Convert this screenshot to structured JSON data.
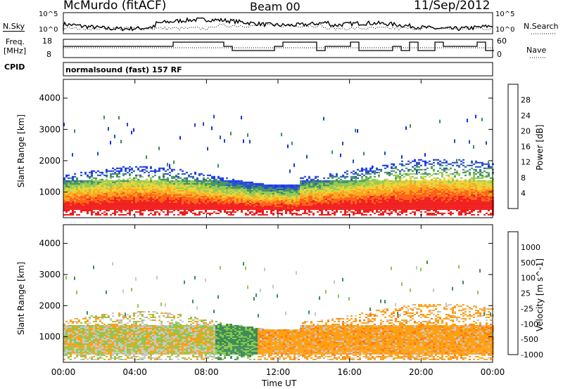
{
  "header": {
    "station": "McMurdo (fitACF)",
    "beam": "Beam 00",
    "date": "11/Sep/2012"
  },
  "side_labels": {
    "left_top": "N.Sky",
    "left_freq_1": "Freq.",
    "left_freq_2": "[MHz]",
    "left_cpid": "CPID",
    "right_top": "N.Search",
    "right_nave": "Nave"
  },
  "noise_panel": {
    "left_ticks": [
      "10^5",
      "10^0"
    ],
    "right_ticks": [
      "10^5",
      "10^0"
    ]
  },
  "freq_panel": {
    "left_ticks": [
      "18",
      "8"
    ],
    "right_ticks": [
      "60",
      "0"
    ]
  },
  "cpid_text": "normalsound (fast) 157 RF",
  "chart_data": [
    {
      "type": "heatmap",
      "title": "Power",
      "ylabel": "Slant Range [km]",
      "xlabel": "",
      "ylim": [
        180,
        4600
      ],
      "yticks": [
        "1000",
        "2000",
        "3000",
        "4000"
      ],
      "colorbar_label": "Power [dB]",
      "colorbar_ticks": [
        "28",
        "24",
        "20",
        "16",
        "12",
        "8",
        "4"
      ],
      "colors": [
        "#0a28ff",
        "#1e46c8",
        "#3c8c5a",
        "#8cc84b",
        "#e6d22d",
        "#ffa014",
        "#ff5a0a",
        "#f01414"
      ],
      "scatter_band_km": [
        700,
        1500
      ],
      "sparse_scatter_km": [
        1700,
        3500
      ]
    },
    {
      "type": "heatmap",
      "title": "Velocity",
      "ylabel": "Slant Range [km]",
      "xlabel": "Time UT",
      "xticks": [
        "00:00",
        "04:00",
        "08:00",
        "12:00",
        "16:00",
        "20:00",
        "00:00"
      ],
      "ylim": [
        180,
        4600
      ],
      "yticks": [
        "1000",
        "2000",
        "3000",
        "4000"
      ],
      "colorbar_label": "Velocity [m s^-1]",
      "colorbar_ticks": [
        "1000",
        "500",
        "100",
        "25",
        "-25",
        "-100",
        "-500",
        "-1000"
      ],
      "colors": [
        "#1e46c8",
        "#2e6ea0",
        "#3c8c5a",
        "#8cc84b",
        "#c8c8c8",
        "#ffa014",
        "#ff7814",
        "#f01414"
      ]
    }
  ]
}
